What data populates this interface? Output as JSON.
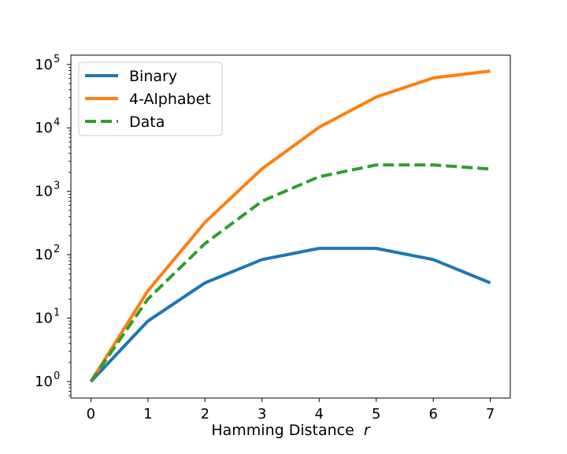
{
  "chart_data": {
    "type": "line",
    "x": [
      0,
      1,
      2,
      3,
      4,
      5,
      6,
      7
    ],
    "xlabel": "Hamming Distance",
    "xlabel_var": "r",
    "ylabel": "",
    "yscale": "log",
    "ylim": [
      0.55,
      140000
    ],
    "xlim": [
      -0.35,
      7.35
    ],
    "xticks": [
      "0",
      "1",
      "2",
      "3",
      "4",
      "5",
      "6",
      "7"
    ],
    "yticks": [
      {
        "value": 1,
        "base": "10",
        "exp": "0"
      },
      {
        "value": 10,
        "base": "10",
        "exp": "1"
      },
      {
        "value": 100,
        "base": "10",
        "exp": "2"
      },
      {
        "value": 1000,
        "base": "10",
        "exp": "3"
      },
      {
        "value": 10000,
        "base": "10",
        "exp": "4"
      },
      {
        "value": 100000,
        "base": "10",
        "exp": "5"
      }
    ],
    "grid": false,
    "legend_position": "top-left",
    "series": [
      {
        "name": "Binary",
        "color": "#1f77b4",
        "dash": "solid",
        "values": [
          1,
          9,
          36,
          84,
          126,
          126,
          84,
          36
        ]
      },
      {
        "name": "4-Alphabet",
        "color": "#ff7f0e",
        "dash": "solid",
        "values": [
          1,
          27,
          324,
          2268,
          10206,
          30618,
          61236,
          78732
        ]
      },
      {
        "name": "Data",
        "color": "#2ca02c",
        "dash": "dashed",
        "values": [
          1,
          20,
          150,
          700,
          1700,
          2600,
          2600,
          2250
        ]
      }
    ]
  }
}
